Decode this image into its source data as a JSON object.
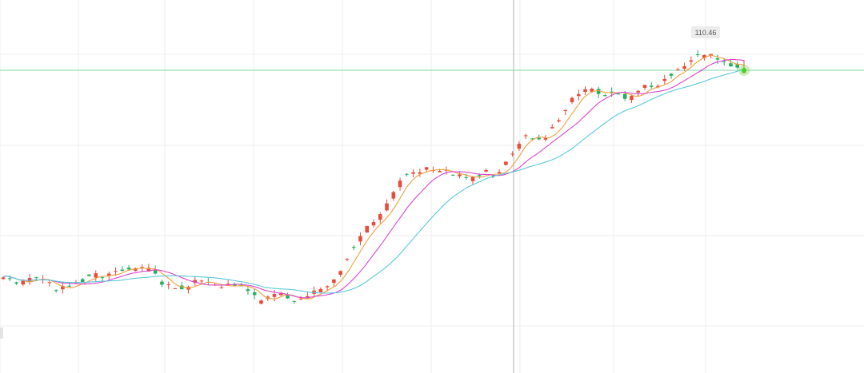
{
  "chart_data": {
    "type": "candlestick",
    "title": "",
    "xlabel": "",
    "ylabel": "",
    "grid": true,
    "colors": {
      "up": "#e74c3c",
      "down": "#27ae60",
      "ma_fast": "#f0a040",
      "ma_mid": "#d946d0",
      "ma_slow": "#5bc8d8",
      "current_line": "#7fd6a0",
      "current_marker": "#4ccf2a"
    },
    "price_label": "110.46",
    "current_price": 110.46
  }
}
